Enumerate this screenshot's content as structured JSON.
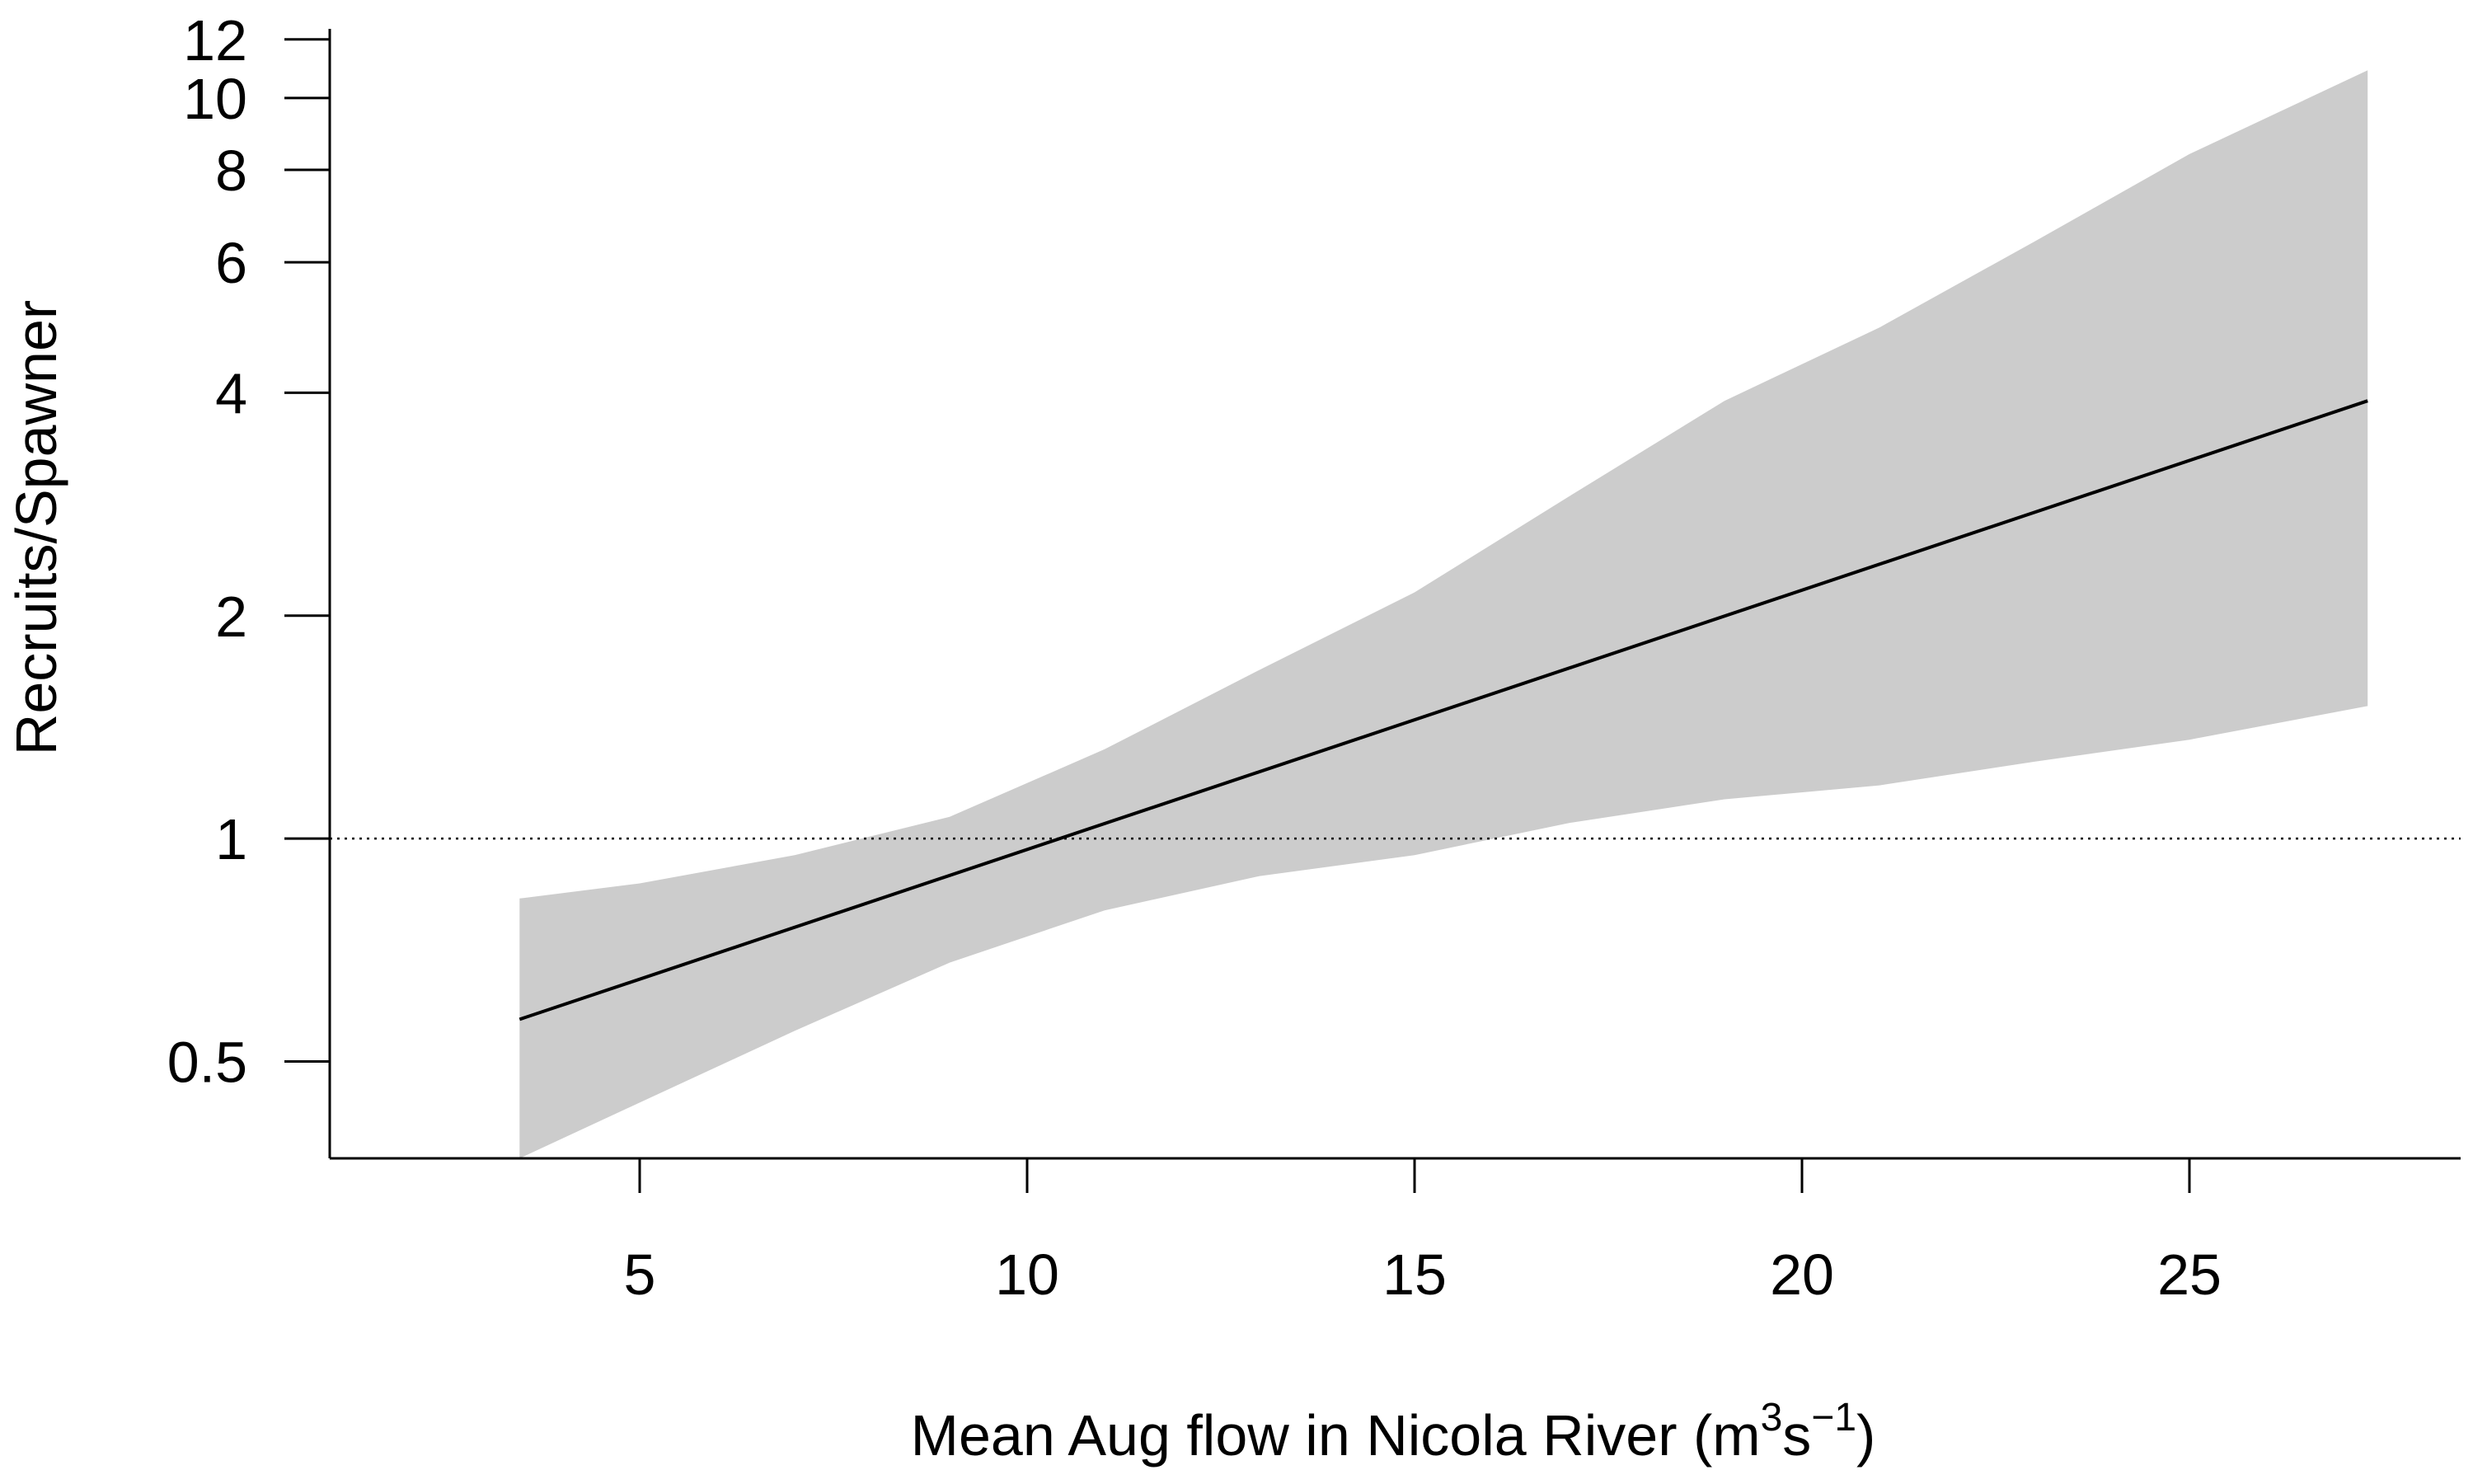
{
  "chart_data": {
    "type": "area",
    "xlabel": "Mean Aug flow in Nicola River (m",
    "xlabel_unit_sup1": "3",
    "xlabel_unit_mid": "s",
    "xlabel_unit_sup2": "−1",
    "xlabel_unit_close": ")",
    "ylabel": "Recruits/Spawner",
    "y_scale": "log",
    "xlim": [
      1.0,
      28.5
    ],
    "ylim": [
      0.37,
      12.4
    ],
    "x_ticks": [
      {
        "value": 5,
        "label": "5"
      },
      {
        "value": 10,
        "label": "10"
      },
      {
        "value": 15,
        "label": "15"
      },
      {
        "value": 20,
        "label": "20"
      },
      {
        "value": 25,
        "label": "25"
      }
    ],
    "y_ticks": [
      {
        "value": 0.5,
        "label": "0.5"
      },
      {
        "value": 1,
        "label": "1"
      },
      {
        "value": 2,
        "label": "2"
      },
      {
        "value": 4,
        "label": "4"
      },
      {
        "value": 6,
        "label": "6"
      },
      {
        "value": 8,
        "label": "8"
      },
      {
        "value": 10,
        "label": "10"
      },
      {
        "value": 12,
        "label": "12"
      }
    ],
    "reference_line": {
      "y": 1,
      "style": "dotted"
    },
    "series": [
      {
        "kind": "band",
        "color": "#cccccc",
        "x": [
          3.45,
          5,
          7,
          9,
          11,
          13,
          15,
          17,
          19,
          21,
          23,
          25,
          27.3
        ],
        "lower": [
          0.37,
          0.44,
          0.55,
          0.68,
          0.8,
          0.89,
          0.95,
          1.05,
          1.13,
          1.18,
          1.27,
          1.36,
          1.51
        ],
        "upper": [
          0.83,
          0.87,
          0.95,
          1.07,
          1.32,
          1.69,
          2.15,
          2.9,
          3.9,
          4.9,
          6.4,
          8.4,
          10.9
        ]
      },
      {
        "kind": "line",
        "color": "#000000",
        "x": [
          3.45,
          27.3
        ],
        "y": [
          0.57,
          3.9
        ]
      }
    ]
  }
}
